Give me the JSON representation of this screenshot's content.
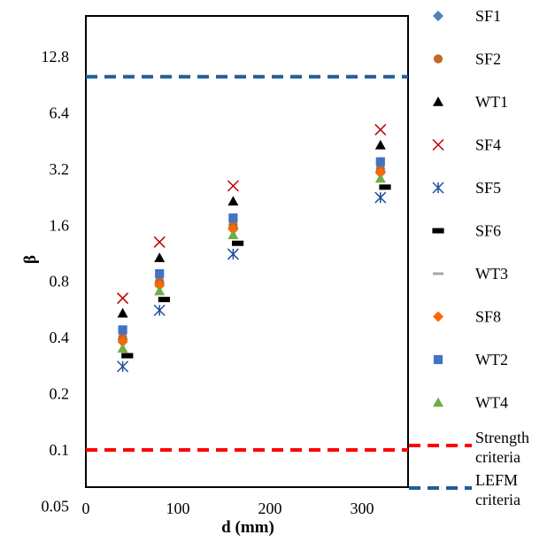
{
  "chart_data": {
    "type": "scatter",
    "title": "",
    "xlabel": "d (mm)",
    "ylabel": "β",
    "xlim": [
      0,
      350
    ],
    "ylim": [
      0.05,
      20
    ],
    "y_scale": "log2",
    "x_ticks": [
      "0",
      "100",
      "200",
      "300"
    ],
    "x_tick_values": [
      0,
      100,
      200,
      300
    ],
    "y_ticks": [
      "0.05",
      "0.1",
      "0.2",
      "0.4",
      "0.8",
      "1.6",
      "3.2",
      "6.4",
      "12.8"
    ],
    "y_tick_values": [
      0.05,
      0.1,
      0.2,
      0.4,
      0.8,
      1.6,
      3.2,
      6.4,
      12.8
    ],
    "grid": false,
    "legend_position": "right",
    "series": [
      {
        "name": "SF1",
        "marker": "diamond",
        "color": "#4f81bd",
        "x": [
          40,
          80,
          160,
          320
        ],
        "y": [
          0.39,
          0.78,
          1.55,
          3.1
        ]
      },
      {
        "name": "SF2",
        "marker": "circle",
        "color": "#c0692a",
        "x": [
          40,
          80,
          160,
          320
        ],
        "y": [
          0.4,
          0.8,
          1.6,
          3.2
        ]
      },
      {
        "name": "WT1",
        "marker": "triangle",
        "color": "#000000",
        "x": [
          40,
          80,
          160,
          320
        ],
        "y": [
          0.54,
          1.07,
          2.15,
          4.3
        ]
      },
      {
        "name": "SF4",
        "marker": "x",
        "color": "#c00000",
        "x": [
          40,
          80,
          160,
          320
        ],
        "y": [
          0.65,
          1.3,
          2.6,
          5.2
        ]
      },
      {
        "name": "SF5",
        "marker": "asterisk",
        "color": "#1f4e9b",
        "x": [
          40,
          80,
          160,
          320
        ],
        "y": [
          0.28,
          0.56,
          1.12,
          2.25
        ]
      },
      {
        "name": "SF6",
        "marker": "dash",
        "color": "#000000",
        "x": [
          45,
          85,
          165,
          325
        ],
        "y": [
          0.32,
          0.64,
          1.28,
          2.56
        ]
      },
      {
        "name": "WT3",
        "marker": "dash",
        "color": "#a6a6a6",
        "x": [],
        "y": []
      },
      {
        "name": "SF8",
        "marker": "diamond",
        "color": "#ff6600",
        "x": [
          40,
          80,
          160,
          320
        ],
        "y": [
          0.38,
          0.76,
          1.52,
          3.05
        ]
      },
      {
        "name": "WT2",
        "marker": "square",
        "color": "#4472c4",
        "x": [
          40,
          80,
          160,
          320
        ],
        "y": [
          0.44,
          0.88,
          1.75,
          3.5
        ]
      },
      {
        "name": "WT4",
        "marker": "triangle",
        "color": "#70ad47",
        "x": [
          40,
          80,
          160,
          320
        ],
        "y": [
          0.35,
          0.71,
          1.42,
          2.85
        ]
      }
    ],
    "reference_lines": [
      {
        "name": "Strength criteria",
        "y": 0.1,
        "color": "#ff0000",
        "style": "dashed"
      },
      {
        "name": "LEFM criteria",
        "y": 10,
        "color": "#1f5d96",
        "style": "dashed"
      }
    ]
  }
}
